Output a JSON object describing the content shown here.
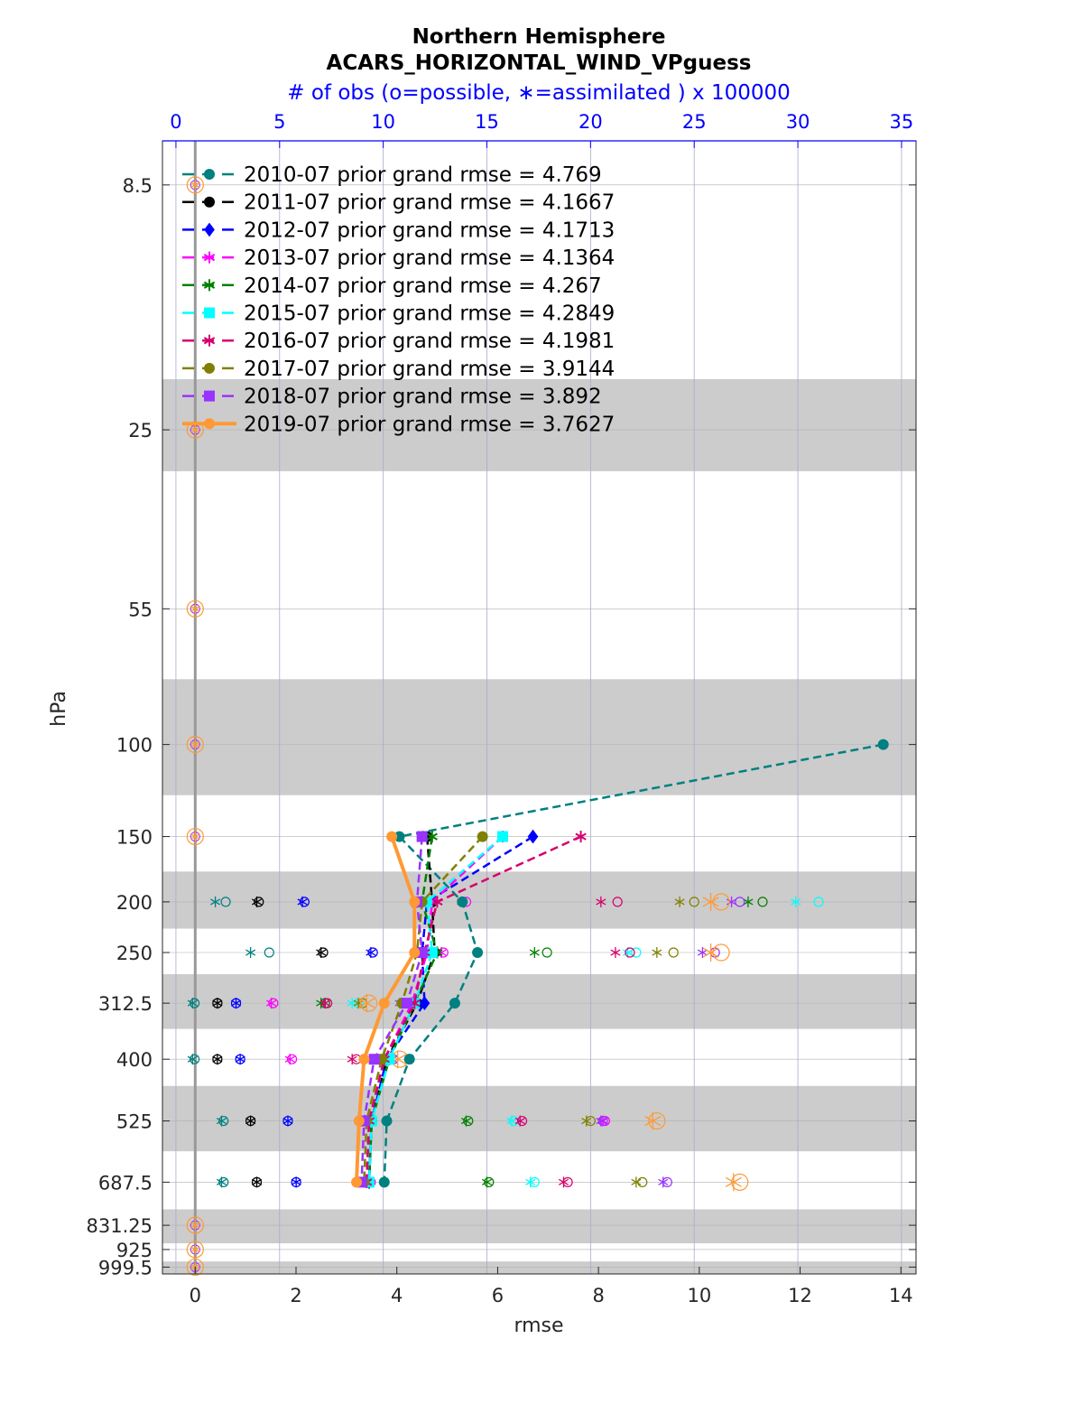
{
  "chart_data": {
    "type": "line",
    "title": "Northern Hemisphere",
    "subtitle": "ACARS_HORIZONTAL_WIND_VPguess",
    "top_axis_label": "# of obs (o=possible, ∗=assimilated ) x 100000",
    "xlabel": "rmse",
    "ylabel": "hPa",
    "xlim": [
      -0.65,
      14.3
    ],
    "xticks": [
      0,
      2,
      4,
      6,
      8,
      10,
      12,
      14
    ],
    "top_xlim": [
      -0.65,
      35.7
    ],
    "top_xticks": [
      0,
      5,
      10,
      15,
      20,
      25,
      30,
      35
    ],
    "ylim_log_hpa": [
      7.0,
      1030
    ],
    "levels": [
      8.5,
      25,
      55,
      100,
      150,
      200,
      250,
      312.5,
      400,
      525,
      687.5,
      831.25,
      925,
      999.5
    ],
    "level_labels": [
      "8.5",
      "25",
      "55",
      "100",
      "150",
      "200",
      "250",
      "312.5",
      "400",
      "525",
      "687.5",
      "831.25",
      "925",
      "999.5"
    ],
    "bands": [
      [
        20,
        30
      ],
      [
        75,
        125
      ],
      [
        175,
        225
      ],
      [
        275,
        350
      ],
      [
        450,
        600
      ],
      [
        775,
        900
      ],
      [
        975,
        1030
      ]
    ],
    "series": [
      {
        "name": "2010-07 prior grand rmse = 4.769",
        "color": "#008080",
        "marker": "circle",
        "levels": [
          100,
          150,
          200,
          250,
          312.5,
          400,
          525,
          687.5
        ],
        "rmse": [
          13.65,
          4.05,
          5.3,
          5.6,
          5.15,
          4.25,
          3.8,
          3.75
        ],
        "obs_levels": [
          200,
          250,
          312.5,
          400,
          525,
          687.5
        ],
        "possible": [
          2.4,
          4.5,
          0.9,
          0.9,
          2.3,
          2.3
        ],
        "assimilated": [
          1.9,
          3.6,
          0.8,
          0.8,
          2.2,
          2.2
        ]
      },
      {
        "name": "2011-07 prior grand rmse = 4.1667",
        "color": "#000000",
        "marker": "circle",
        "levels": [
          150,
          200,
          250,
          312.5,
          400,
          525,
          687.5
        ],
        "rmse": [
          4.6,
          4.7,
          4.75,
          4.4,
          3.8,
          3.5,
          3.45
        ],
        "obs_levels": [
          200,
          250,
          312.5,
          400,
          525,
          687.5
        ],
        "possible": [
          4.0,
          7.1,
          2.0,
          2.0,
          3.6,
          3.9
        ],
        "assimilated": [
          3.9,
          7.0,
          2.0,
          2.0,
          3.6,
          3.9
        ]
      },
      {
        "name": "2012-07 prior grand rmse = 4.1713",
        "color": "#0000ff",
        "marker": "diamond",
        "levels": [
          150,
          200,
          250,
          312.5,
          400,
          525,
          687.5
        ],
        "rmse": [
          6.7,
          4.6,
          4.5,
          4.55,
          3.8,
          3.5,
          3.45
        ],
        "obs_levels": [
          200,
          250,
          312.5,
          400,
          525,
          687.5
        ],
        "possible": [
          6.2,
          9.5,
          2.9,
          3.1,
          5.4,
          5.8
        ],
        "assimilated": [
          6.1,
          9.4,
          2.9,
          3.1,
          5.4,
          5.8
        ]
      },
      {
        "name": "2013-07 prior grand rmse = 4.1364",
        "color": "#ff00ff",
        "marker": "asterisk",
        "levels": [
          150,
          200,
          250,
          312.5,
          400,
          525,
          687.5
        ],
        "rmse": [
          6.1,
          4.7,
          4.6,
          4.3,
          3.75,
          3.45,
          3.4
        ],
        "obs_levels": [
          200,
          250,
          312.5,
          400,
          525,
          687.5
        ],
        "possible": [
          14.0,
          12.9,
          4.7,
          5.6,
          20.7,
          9.4
        ],
        "assimilated": [
          13.8,
          12.8,
          4.6,
          5.5,
          20.6,
          9.3
        ]
      },
      {
        "name": "2014-07 prior grand rmse = 4.267",
        "color": "#008000",
        "marker": "asterisk",
        "levels": [
          150,
          200,
          250,
          312.5,
          400,
          525,
          687.5
        ],
        "rmse": [
          4.7,
          4.5,
          4.8,
          4.35,
          3.85,
          3.5,
          3.45
        ],
        "obs_levels": [
          200,
          250,
          312.5,
          400,
          525,
          687.5
        ],
        "possible": [
          28.3,
          17.9,
          7.2,
          10.2,
          14.1,
          15.1
        ],
        "assimilated": [
          27.6,
          17.3,
          7.0,
          10.1,
          14.0,
          15.0
        ]
      },
      {
        "name": "2015-07 prior grand rmse = 4.2849",
        "color": "#00ffff",
        "marker": "square",
        "levels": [
          150,
          200,
          250,
          312.5,
          400,
          525,
          687.5
        ],
        "rmse": [
          6.1,
          4.6,
          4.7,
          4.35,
          3.85,
          3.5,
          3.45
        ],
        "obs_levels": [
          200,
          250,
          312.5,
          400,
          525,
          687.5
        ],
        "possible": [
          31.0,
          22.2,
          8.8,
          10.5,
          16.3,
          17.3
        ],
        "assimilated": [
          29.9,
          21.8,
          8.5,
          10.4,
          16.2,
          17.1
        ]
      },
      {
        "name": "2016-07 prior grand rmse = 4.1981",
        "color": "#d6006e",
        "marker": "asterisk",
        "levels": [
          150,
          200,
          250,
          312.5,
          400,
          525,
          687.5
        ],
        "rmse": [
          7.65,
          4.8,
          4.55,
          4.35,
          3.75,
          3.45,
          3.4
        ],
        "obs_levels": [
          200,
          250,
          312.5,
          400,
          525,
          687.5
        ],
        "possible": [
          21.3,
          21.9,
          7.3,
          8.7,
          16.7,
          18.9
        ],
        "assimilated": [
          20.5,
          21.2,
          7.2,
          8.5,
          16.6,
          18.7
        ]
      },
      {
        "name": "2017-07 prior grand rmse = 3.9144",
        "color": "#808000",
        "marker": "circle",
        "levels": [
          150,
          200,
          250,
          312.5,
          400,
          525,
          687.5
        ],
        "rmse": [
          5.7,
          4.5,
          4.4,
          4.1,
          3.7,
          3.4,
          3.35
        ],
        "obs_levels": [
          200,
          250,
          312.5,
          400,
          525,
          687.5
        ],
        "possible": [
          25.0,
          24.0,
          9.0,
          10.0,
          20.0,
          22.5
        ],
        "assimilated": [
          24.3,
          23.2,
          8.8,
          9.9,
          19.8,
          22.2
        ]
      },
      {
        "name": "2018-07 prior grand rmse = 3.892",
        "color": "#9933ff",
        "marker": "square",
        "levels": [
          150,
          200,
          250,
          312.5,
          400,
          525,
          687.5
        ],
        "rmse": [
          4.5,
          4.4,
          4.5,
          4.2,
          3.55,
          3.35,
          3.3
        ],
        "obs_levels": [
          200,
          250,
          312.5,
          400,
          525,
          687.5
        ],
        "possible": [
          27.2,
          26.0,
          11.0,
          10.5,
          20.6,
          23.7
        ],
        "assimilated": [
          26.8,
          25.4,
          10.8,
          10.4,
          20.5,
          23.5
        ]
      },
      {
        "name": "2019-07 prior grand rmse = 3.7627",
        "color": "#ff9933",
        "marker": "circle",
        "levels": [
          150,
          200,
          250,
          312.5,
          400,
          525,
          687.5
        ],
        "rmse": [
          3.9,
          4.35,
          4.35,
          3.75,
          3.35,
          3.25,
          3.2
        ],
        "obs_levels": [
          200,
          250,
          312.5,
          400,
          525,
          687.5
        ],
        "possible": [
          26.3,
          26.3,
          9.3,
          10.8,
          23.2,
          27.2
        ],
        "assimilated": [
          25.8,
          25.8,
          9.2,
          10.7,
          23.0,
          26.9
        ]
      }
    ]
  }
}
